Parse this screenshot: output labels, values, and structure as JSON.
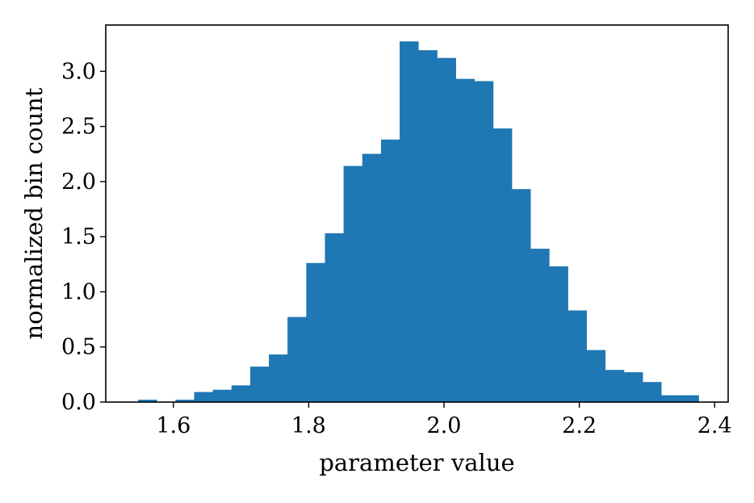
{
  "chart_data": {
    "type": "bar",
    "xlabel": "parameter value",
    "ylabel": "normalized bin count",
    "xlim": [
      1.5,
      2.42
    ],
    "ylim": [
      0,
      3.42
    ],
    "x_ticks": [
      1.6,
      1.8,
      2.0,
      2.2,
      2.4
    ],
    "x_tick_labels": [
      "1.6",
      "1.8",
      "2.0",
      "2.2",
      "2.4"
    ],
    "y_ticks": [
      0.0,
      0.5,
      1.0,
      1.5,
      2.0,
      2.5,
      3.0
    ],
    "y_tick_labels": [
      "0.0",
      "0.5",
      "1.0",
      "1.5",
      "2.0",
      "2.5",
      "3.0"
    ],
    "bin_start": 1.548,
    "bin_width": 0.02762,
    "values": [
      0.02,
      0.0,
      0.02,
      0.09,
      0.11,
      0.15,
      0.32,
      0.43,
      0.77,
      1.26,
      1.53,
      2.14,
      2.25,
      2.38,
      3.27,
      3.19,
      3.12,
      2.93,
      2.91,
      2.48,
      1.93,
      1.39,
      1.23,
      0.83,
      0.47,
      0.29,
      0.27,
      0.18,
      0.06,
      0.06
    ],
    "bar_color": "#1f77b4",
    "grid": false
  }
}
